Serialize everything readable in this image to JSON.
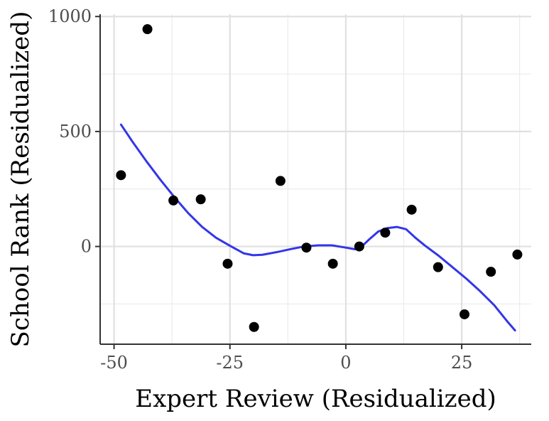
{
  "chart_data": {
    "type": "scatter",
    "xlabel": "Expert Review (Residualized)",
    "ylabel": "School Rank (Residualized)",
    "xlim": [
      -53,
      40
    ],
    "ylim": [
      -425,
      1010
    ],
    "x_ticks": [
      -50,
      -25,
      0,
      25
    ],
    "x_tick_labels": [
      "-50",
      "-25",
      "0",
      "25"
    ],
    "x_minor_ticks": [
      -37.5,
      -12.5,
      12.5,
      37.5
    ],
    "y_ticks": [
      0,
      500,
      1000
    ],
    "y_tick_labels": [
      "0",
      "500",
      "1000"
    ],
    "y_minor_ticks": [
      -250,
      250,
      750
    ],
    "grid": true,
    "series": [
      {
        "type": "scatter",
        "color": "#000000",
        "x": [
          -48.5,
          -42.8,
          -37.2,
          -31.3,
          -25.5,
          -19.8,
          -14.1,
          -8.5,
          -2.8,
          2.9,
          8.5,
          14.2,
          19.9,
          25.6,
          31.3,
          37.0
        ],
        "y": [
          310,
          945,
          200,
          205,
          -75,
          -350,
          285,
          -5,
          -75,
          0,
          60,
          160,
          -90,
          -295,
          -110,
          -35
        ]
      },
      {
        "type": "line",
        "color": "#3336e8",
        "x": [
          -48.5,
          -46,
          -43,
          -40,
          -37,
          -34,
          -31,
          -28,
          -25,
          -22,
          -20,
          -18,
          -15,
          -12,
          -9,
          -6,
          -3,
          0,
          2,
          3,
          5,
          7,
          9,
          11,
          13,
          15,
          17,
          20,
          23,
          26,
          29,
          32,
          35,
          36.5
        ],
        "y": [
          530,
          455,
          370,
          290,
          215,
          145,
          85,
          38,
          3,
          -30,
          -38,
          -36,
          -25,
          -12,
          0,
          5,
          5,
          -5,
          -12,
          -8,
          30,
          65,
          80,
          85,
          75,
          38,
          5,
          -40,
          -90,
          -140,
          -195,
          -255,
          -330,
          -365
        ]
      }
    ]
  }
}
